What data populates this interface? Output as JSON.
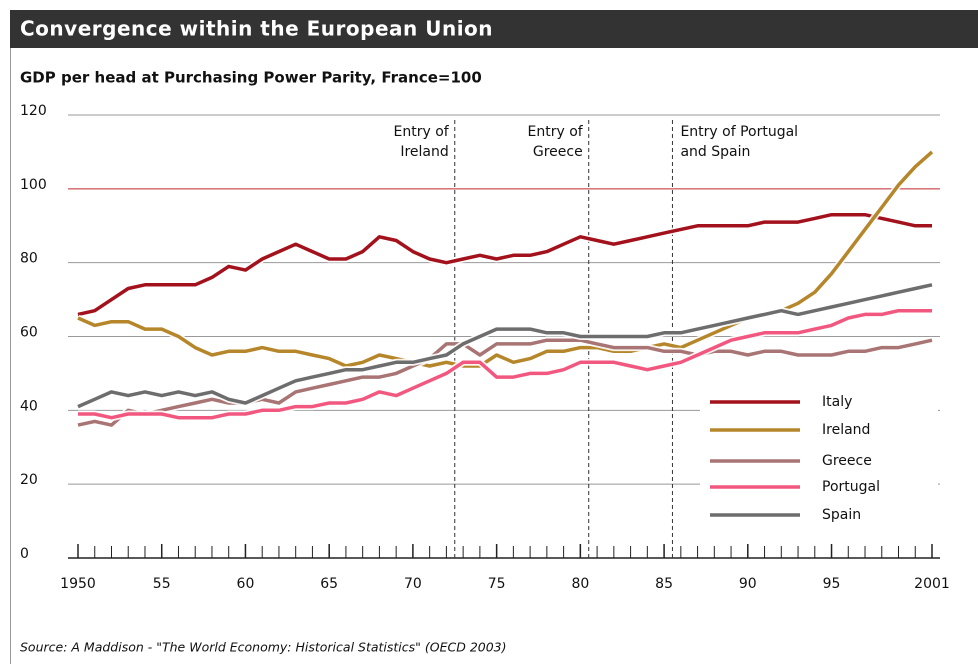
{
  "chart_data": {
    "type": "line",
    "title": "Convergence within the European Union",
    "subtitle": "GDP per head at Purchasing Power Parity, France=100",
    "source": "Source: A Maddison - \"The World Economy: Historical Statistics\" (OECD 2003)",
    "x": [
      1950,
      1951,
      1952,
      1953,
      1954,
      1955,
      1956,
      1957,
      1958,
      1959,
      1960,
      1961,
      1962,
      1963,
      1964,
      1965,
      1966,
      1967,
      1968,
      1969,
      1970,
      1971,
      1972,
      1973,
      1974,
      1975,
      1976,
      1977,
      1978,
      1979,
      1980,
      1981,
      1982,
      1983,
      1984,
      1985,
      1986,
      1987,
      1988,
      1989,
      1990,
      1991,
      1992,
      1993,
      1994,
      1995,
      1996,
      1997,
      1998,
      1999,
      2000,
      2001
    ],
    "series": [
      {
        "name": "Italy",
        "color": "#a3121c",
        "values": [
          66,
          67,
          70,
          73,
          74,
          74,
          74,
          74,
          76,
          79,
          78,
          81,
          83,
          85,
          83,
          81,
          81,
          83,
          87,
          86,
          83,
          81,
          80,
          81,
          82,
          81,
          82,
          82,
          83,
          85,
          87,
          86,
          85,
          86,
          87,
          88,
          89,
          90,
          90,
          90,
          90,
          91,
          91,
          91,
          92,
          93,
          93,
          93,
          92,
          91,
          90,
          90
        ]
      },
      {
        "name": "Ireland",
        "color": "#b5862a",
        "values": [
          65,
          63,
          64,
          64,
          62,
          62,
          60,
          57,
          55,
          56,
          56,
          57,
          56,
          56,
          55,
          54,
          52,
          53,
          55,
          54,
          53,
          52,
          53,
          52,
          52,
          55,
          53,
          54,
          56,
          56,
          57,
          57,
          56,
          56,
          57,
          58,
          57,
          59,
          61,
          63,
          65,
          66,
          67,
          69,
          72,
          77,
          83,
          89,
          95,
          101,
          106,
          110
        ]
      },
      {
        "name": "Greece",
        "color": "#a87474",
        "values": [
          36,
          37,
          36,
          40,
          39,
          40,
          41,
          42,
          43,
          42,
          42,
          43,
          42,
          45,
          46,
          47,
          48,
          49,
          49,
          50,
          52,
          54,
          58,
          58,
          55,
          58,
          58,
          58,
          59,
          59,
          59,
          58,
          57,
          57,
          57,
          56,
          56,
          55,
          56,
          56,
          55,
          56,
          56,
          55,
          55,
          55,
          56,
          56,
          57,
          57,
          58,
          59
        ]
      },
      {
        "name": "Portugal",
        "color": "#f2587f",
        "values": [
          39,
          39,
          38,
          39,
          39,
          39,
          38,
          38,
          38,
          39,
          39,
          40,
          40,
          41,
          41,
          42,
          42,
          43,
          45,
          44,
          46,
          48,
          50,
          53,
          53,
          49,
          49,
          50,
          50,
          51,
          53,
          53,
          53,
          52,
          51,
          52,
          53,
          55,
          57,
          59,
          60,
          61,
          61,
          61,
          62,
          63,
          65,
          66,
          66,
          67,
          67,
          67
        ]
      },
      {
        "name": "Spain",
        "color": "#6d6d6d",
        "values": [
          41,
          43,
          45,
          44,
          45,
          44,
          45,
          44,
          45,
          43,
          42,
          44,
          46,
          48,
          49,
          50,
          51,
          51,
          52,
          53,
          53,
          54,
          55,
          58,
          60,
          62,
          62,
          62,
          61,
          61,
          60,
          60,
          60,
          60,
          60,
          61,
          61,
          62,
          63,
          64,
          65,
          66,
          67,
          66,
          67,
          68,
          69,
          70,
          71,
          72,
          73,
          74
        ]
      }
    ],
    "xlim": [
      1950,
      2001
    ],
    "xticks": [
      {
        "value": 1950,
        "label": "1950"
      },
      {
        "value": 1955,
        "label": "55"
      },
      {
        "value": 1960,
        "label": "60"
      },
      {
        "value": 1965,
        "label": "65"
      },
      {
        "value": 1970,
        "label": "70"
      },
      {
        "value": 1975,
        "label": "75"
      },
      {
        "value": 1980,
        "label": "80"
      },
      {
        "value": 1985,
        "label": "85"
      },
      {
        "value": 1990,
        "label": "90"
      },
      {
        "value": 1995,
        "label": "95"
      },
      {
        "value": 2001,
        "label": "2001"
      }
    ],
    "ylim": [
      0,
      120
    ],
    "yticks": [
      0,
      20,
      40,
      60,
      80,
      100,
      120
    ],
    "grid": true,
    "reference_line": {
      "value": 100,
      "color": "#c0262c"
    },
    "annotations": [
      {
        "x": 1972.5,
        "lines": [
          "Entry of",
          "Ireland"
        ],
        "side": "left"
      },
      {
        "x": 1980.5,
        "lines": [
          "Entry of",
          "Greece"
        ],
        "side": "left"
      },
      {
        "x": 1985.5,
        "lines": [
          "Entry of Portugal",
          "and Spain"
        ],
        "side": "right"
      }
    ],
    "legend": "lower right"
  }
}
